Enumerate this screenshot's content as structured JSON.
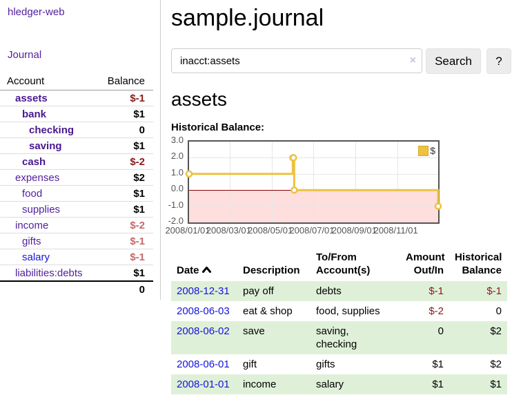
{
  "app": {
    "title": "hledger-web"
  },
  "sidebar": {
    "journal_link": "Journal",
    "table": {
      "account_header": "Account",
      "balance_header": "Balance",
      "rows": [
        {
          "account": "assets",
          "balance": "$-1",
          "depth": 1,
          "bold": true,
          "balance_class": "neg-strong"
        },
        {
          "account": "bank",
          "balance": "$1",
          "depth": 2,
          "bold": true,
          "balance_class": ""
        },
        {
          "account": "checking",
          "balance": "0",
          "depth": 3,
          "bold": true,
          "balance_class": ""
        },
        {
          "account": "saving",
          "balance": "$1",
          "depth": 3,
          "bold": true,
          "balance_class": ""
        },
        {
          "account": "cash",
          "balance": "$-2",
          "depth": 2,
          "bold": true,
          "balance_class": "neg-strong"
        },
        {
          "account": "expenses",
          "balance": "$2",
          "depth": 1,
          "bold": false,
          "balance_class": ""
        },
        {
          "account": "food",
          "balance": "$1",
          "depth": 2,
          "bold": false,
          "balance_class": ""
        },
        {
          "account": "supplies",
          "balance": "$1",
          "depth": 2,
          "bold": false,
          "balance_class": ""
        },
        {
          "account": "income",
          "balance": "$-2",
          "depth": 1,
          "bold": false,
          "balance_class": "neg-soft"
        },
        {
          "account": "gifts",
          "balance": "$-1",
          "depth": 2,
          "bold": false,
          "balance_class": "neg-soft"
        },
        {
          "account": "salary",
          "balance": "$-1",
          "depth": 2,
          "bold": false,
          "balance_class": "neg-soft",
          "blue_link": true
        },
        {
          "account": "liabilities:debts",
          "balance": "$1",
          "depth": 1,
          "bold": false,
          "balance_class": ""
        }
      ],
      "total": "0"
    }
  },
  "header": {
    "title": "sample.journal"
  },
  "search": {
    "value": "inacct:assets",
    "clear_icon": "×",
    "button_label": "Search",
    "help_label": "?"
  },
  "account_page": {
    "heading": "assets",
    "chart_label": "Historical Balance:"
  },
  "chart_data": {
    "type": "line",
    "style": "step",
    "title": "Historical Balance:",
    "series": [
      {
        "name": "$",
        "color": "#EDC240",
        "points": [
          [
            "2008-01-01",
            1
          ],
          [
            "2008-06-01",
            2
          ],
          [
            "2008-06-02",
            2
          ],
          [
            "2008-06-03",
            0
          ],
          [
            "2008-12-31",
            -1
          ]
        ]
      }
    ],
    "xlim": [
      "2008-01-01",
      "2008-12-31"
    ],
    "ylim": [
      -2,
      3
    ],
    "x_ticks": [
      {
        "date": "2008-01-01",
        "label": "2008/01/01"
      },
      {
        "date": "2008-03-01",
        "label": "2008/03/01"
      },
      {
        "date": "2008-05-01",
        "label": "2008/05/01"
      },
      {
        "date": "2008-07-01",
        "label": "2008/07/01"
      },
      {
        "date": "2008-09-01",
        "label": "2008/09/01"
      },
      {
        "date": "2008-11-01",
        "label": "2008/11/01"
      }
    ],
    "y_ticks": [
      {
        "v": 3,
        "label": "3.0"
      },
      {
        "v": 2,
        "label": "2.0"
      },
      {
        "v": 1,
        "label": "1.0"
      },
      {
        "v": 0,
        "label": "0.0"
      },
      {
        "v": -1,
        "label": "-1.0"
      },
      {
        "v": -2,
        "label": "-2.0"
      }
    ],
    "grid": true,
    "legend_position": "top-right",
    "legend_label": "$",
    "negative_region_color": "#ffdede",
    "zero_line_color": "#8b0000"
  },
  "transactions": {
    "headers": {
      "date": "Date",
      "description": "Description",
      "accounts": "To/From Account(s)",
      "amount": "Amount Out/In",
      "balance": "Historical Balance"
    },
    "rows": [
      {
        "date": "2008-12-31",
        "description": "pay off",
        "accounts": "debts",
        "amount": "$-1",
        "balance": "$-1",
        "amount_class": "neg",
        "balance_class": "neg"
      },
      {
        "date": "2008-06-03",
        "description": "eat & shop",
        "accounts": "food, supplies",
        "amount": "$-2",
        "balance": "0",
        "amount_class": "neg",
        "balance_class": ""
      },
      {
        "date": "2008-06-02",
        "description": "save",
        "accounts": "saving,\nchecking",
        "amount": "0",
        "balance": "$2",
        "amount_class": "",
        "balance_class": ""
      },
      {
        "date": "2008-06-01",
        "description": "gift",
        "accounts": "gifts",
        "amount": "$1",
        "balance": "$2",
        "amount_class": "",
        "balance_class": ""
      },
      {
        "date": "2008-01-01",
        "description": "income",
        "accounts": "salary",
        "amount": "$1",
        "balance": "$1",
        "amount_class": "",
        "balance_class": ""
      }
    ]
  },
  "colors": {
    "link_purple": "#52219c",
    "link_blue": "#1414dd",
    "negative_strong": "#8b1a1a",
    "negative_soft": "#c46a6a",
    "row_stripe_green": "#dff0d8",
    "chart_series_gold": "#EDC240",
    "chart_negative_region": "#ffdede",
    "chart_zero_line": "#8b0000"
  }
}
